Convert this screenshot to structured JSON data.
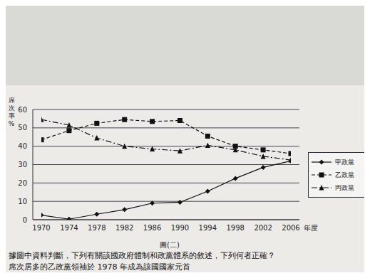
{
  "chart_data": {
    "type": "line",
    "x_label": "年度",
    "y_label": "席次率%",
    "x": [
      1970,
      1974,
      1978,
      1982,
      1986,
      1990,
      1994,
      1998,
      2002,
      2006
    ],
    "xlim": [
      1970,
      2006
    ],
    "xticks": [
      1970,
      1974,
      1978,
      1982,
      1986,
      1990,
      1994,
      1998,
      2002,
      2006
    ],
    "ylim": [
      0,
      60
    ],
    "yticks": [
      0,
      10,
      20,
      30,
      40,
      50,
      60
    ],
    "grid": true,
    "legend": "right",
    "series": [
      {
        "name": "甲政黨",
        "color": "#111111",
        "marker": "diamond",
        "line_style": "solid",
        "values": [
          2.5,
          0.3,
          3,
          5.5,
          9,
          9.5,
          15.5,
          22.5,
          28.5,
          32
        ]
      },
      {
        "name": "乙政黨",
        "color": "#111111",
        "marker": "square",
        "line_style": "dashed",
        "values": [
          43.5,
          48.5,
          52.5,
          54.5,
          53.5,
          54,
          45.5,
          40,
          38,
          36
        ]
      },
      {
        "name": "丙政黨",
        "color": "#111111",
        "marker": "triangle",
        "line_style": "dashdot",
        "values": [
          54.5,
          51.5,
          44.5,
          40,
          38.5,
          37.5,
          40.5,
          38,
          34.5,
          32.5
        ]
      }
    ],
    "annotations": [
      "圖(二)",
      "據圖中資料判斷，下列有關該國政府體制和政黨體系的敘述，下列何者正確？",
      "席次居多的乙政黨領袖於 1978 年成為該國國家元首"
    ]
  }
}
